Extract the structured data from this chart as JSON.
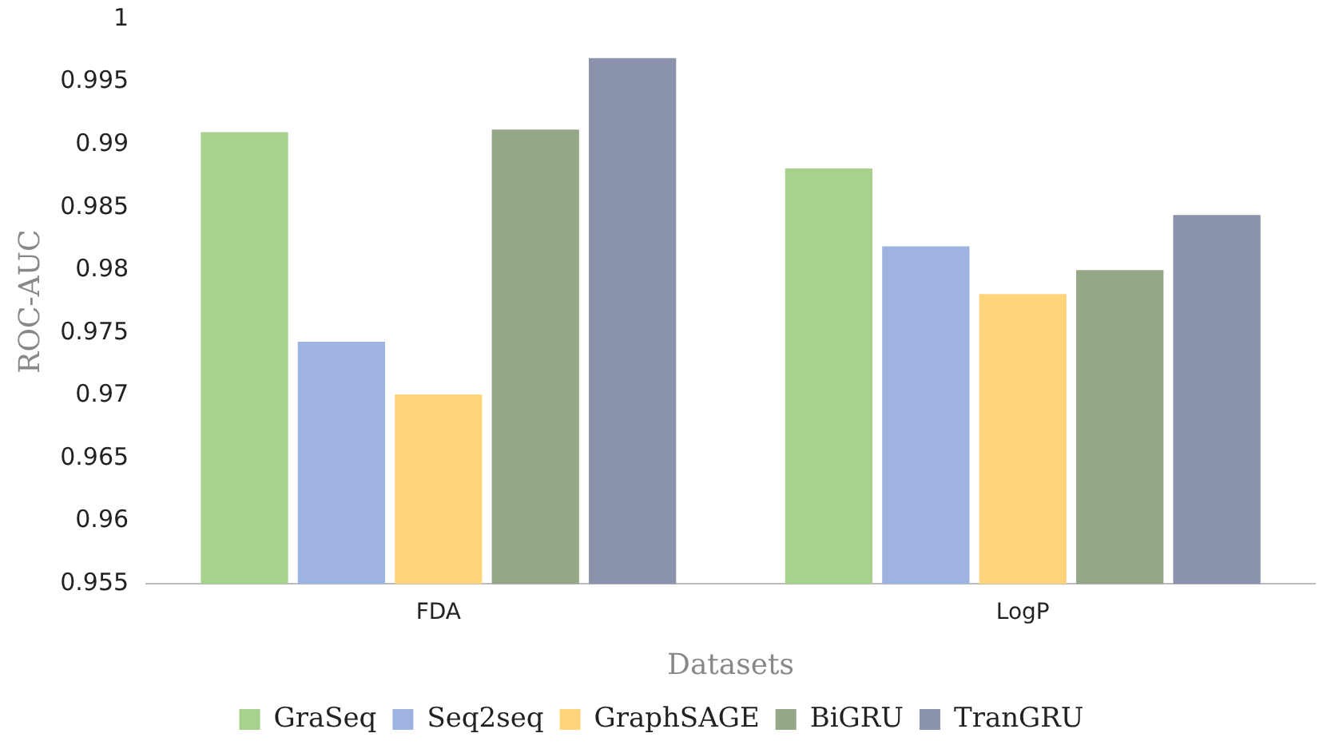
{
  "chart_data": {
    "type": "bar",
    "xlabel": "Datasets",
    "ylabel": "ROC-AUC",
    "categories": [
      "FDA",
      "LogP"
    ],
    "series": [
      {
        "name": "GraSeq",
        "color": "#a9d18e",
        "values": [
          0.991,
          0.9881
        ]
      },
      {
        "name": "Seq2seq",
        "color": "#9fb3e0",
        "values": [
          0.9743,
          0.9819
        ]
      },
      {
        "name": "GraphSAGE",
        "color": "#ffd47a",
        "values": [
          0.9701,
          0.9781
        ]
      },
      {
        "name": "BiGRU",
        "color": "#94a888",
        "values": [
          0.9912,
          0.98
        ]
      },
      {
        "name": "TranGRU",
        "color": "#8a93ab",
        "values": [
          0.9969,
          0.9844
        ]
      }
    ],
    "ylim": [
      0.955,
      1
    ],
    "yticks": [
      0.955,
      0.96,
      0.965,
      0.97,
      0.975,
      0.98,
      0.985,
      0.99,
      0.995,
      1
    ],
    "grid": false,
    "legend": "bottom"
  }
}
